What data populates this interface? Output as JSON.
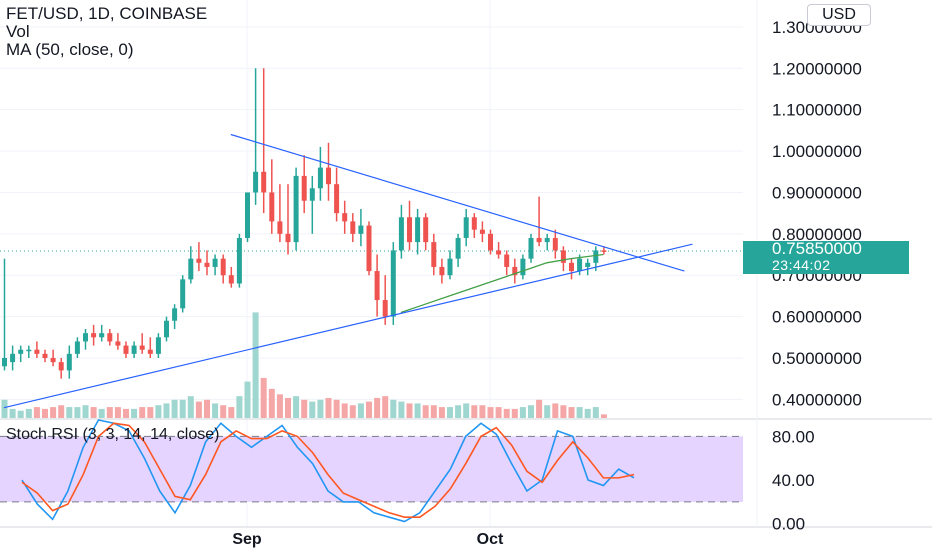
{
  "header": {
    "symbol_line": "FET/USD, 1D, COINBASE",
    "vol_label": "Vol",
    "ma_label": "MA (50, close, 0)"
  },
  "currency_button": "USD",
  "last_price": {
    "value": "0.75850000",
    "countdown": "23:44:02"
  },
  "indicator_title": "Stoch RSI (3, 3, 14, 14, close)",
  "colors": {
    "up": "#26a69a",
    "down": "#ef5350",
    "vol_up": "#9fd6cf",
    "vol_down": "#f4a7a6",
    "trendline": "#2962ff",
    "ma": "#43a047",
    "stoch_k": "#2196f3",
    "stoch_d": "#ff5722",
    "stoch_band": "#e4d4ff",
    "last_price_line": "#26a69a"
  },
  "chart_data": [
    {
      "type": "candlestick",
      "title": "FET/USD, 1D, COINBASE",
      "xlabel": "",
      "ylabel": "",
      "x_tick_labels": [
        "Sep",
        "Oct"
      ],
      "y_tick_labels": [
        "1.30000000",
        "1.20000000",
        "1.10000000",
        "1.00000000",
        "0.90000000",
        "0.80000000",
        "0.70000000",
        "0.60000000",
        "0.50000000",
        "0.40000000"
      ],
      "ylim": [
        0.355,
        1.365
      ],
      "last_price": 0.7585,
      "candles": [
        {
          "d": "Aug 2",
          "o": 0.48,
          "h": 0.74,
          "l": 0.47,
          "c": 0.5
        },
        {
          "d": "Aug 3",
          "o": 0.49,
          "h": 0.53,
          "l": 0.47,
          "c": 0.51
        },
        {
          "d": "Aug 4",
          "o": 0.51,
          "h": 0.53,
          "l": 0.49,
          "c": 0.52
        },
        {
          "d": "Aug 5",
          "o": 0.52,
          "h": 0.53,
          "l": 0.5,
          "c": 0.52
        },
        {
          "d": "Aug 6",
          "o": 0.52,
          "h": 0.54,
          "l": 0.5,
          "c": 0.51
        },
        {
          "d": "Aug 7",
          "o": 0.51,
          "h": 0.52,
          "l": 0.49,
          "c": 0.5
        },
        {
          "d": "Aug 8",
          "o": 0.5,
          "h": 0.52,
          "l": 0.48,
          "c": 0.49
        },
        {
          "d": "Aug 9",
          "o": 0.49,
          "h": 0.5,
          "l": 0.45,
          "c": 0.47
        },
        {
          "d": "Aug 10",
          "o": 0.47,
          "h": 0.53,
          "l": 0.45,
          "c": 0.51
        },
        {
          "d": "Aug 11",
          "o": 0.51,
          "h": 0.55,
          "l": 0.5,
          "c": 0.54
        },
        {
          "d": "Aug 12",
          "o": 0.54,
          "h": 0.57,
          "l": 0.52,
          "c": 0.56
        },
        {
          "d": "Aug 13",
          "o": 0.56,
          "h": 0.58,
          "l": 0.53,
          "c": 0.55
        },
        {
          "d": "Aug 14",
          "o": 0.55,
          "h": 0.58,
          "l": 0.54,
          "c": 0.56
        },
        {
          "d": "Aug 15",
          "o": 0.56,
          "h": 0.57,
          "l": 0.53,
          "c": 0.54
        },
        {
          "d": "Aug 16",
          "o": 0.54,
          "h": 0.56,
          "l": 0.52,
          "c": 0.53
        },
        {
          "d": "Aug 17",
          "o": 0.53,
          "h": 0.54,
          "l": 0.5,
          "c": 0.51
        },
        {
          "d": "Aug 18",
          "o": 0.51,
          "h": 0.54,
          "l": 0.5,
          "c": 0.53
        },
        {
          "d": "Aug 19",
          "o": 0.53,
          "h": 0.56,
          "l": 0.51,
          "c": 0.52
        },
        {
          "d": "Aug 20",
          "o": 0.52,
          "h": 0.55,
          "l": 0.5,
          "c": 0.51
        },
        {
          "d": "Aug 21",
          "o": 0.51,
          "h": 0.56,
          "l": 0.5,
          "c": 0.55
        },
        {
          "d": "Aug 22",
          "o": 0.55,
          "h": 0.6,
          "l": 0.54,
          "c": 0.59
        },
        {
          "d": "Aug 23",
          "o": 0.59,
          "h": 0.63,
          "l": 0.57,
          "c": 0.62
        },
        {
          "d": "Aug 24",
          "o": 0.62,
          "h": 0.7,
          "l": 0.61,
          "c": 0.69
        },
        {
          "d": "Aug 25",
          "o": 0.69,
          "h": 0.77,
          "l": 0.68,
          "c": 0.74
        },
        {
          "d": "Aug 26",
          "o": 0.74,
          "h": 0.78,
          "l": 0.71,
          "c": 0.73
        },
        {
          "d": "Aug 27",
          "o": 0.73,
          "h": 0.76,
          "l": 0.7,
          "c": 0.72
        },
        {
          "d": "Aug 28",
          "o": 0.72,
          "h": 0.75,
          "l": 0.7,
          "c": 0.74
        },
        {
          "d": "Aug 29",
          "o": 0.74,
          "h": 0.75,
          "l": 0.68,
          "c": 0.7
        },
        {
          "d": "Aug 30",
          "o": 0.7,
          "h": 0.72,
          "l": 0.67,
          "c": 0.68
        },
        {
          "d": "Aug 31",
          "o": 0.68,
          "h": 0.8,
          "l": 0.67,
          "c": 0.79
        },
        {
          "d": "Sep 1",
          "o": 0.79,
          "h": 0.9,
          "l": 0.78,
          "c": 0.9
        },
        {
          "d": "Sep 2",
          "o": 0.9,
          "h": 1.2,
          "l": 0.87,
          "c": 0.95
        },
        {
          "d": "Sep 3",
          "o": 0.95,
          "h": 1.2,
          "l": 0.85,
          "c": 0.9
        },
        {
          "d": "Sep 4",
          "o": 0.9,
          "h": 0.98,
          "l": 0.8,
          "c": 0.83
        },
        {
          "d": "Sep 5",
          "o": 0.83,
          "h": 0.92,
          "l": 0.78,
          "c": 0.8
        },
        {
          "d": "Sep 6",
          "o": 0.8,
          "h": 0.92,
          "l": 0.75,
          "c": 0.78
        },
        {
          "d": "Sep 7",
          "o": 0.78,
          "h": 0.96,
          "l": 0.76,
          "c": 0.94
        },
        {
          "d": "Sep 8",
          "o": 0.94,
          "h": 0.99,
          "l": 0.85,
          "c": 0.88
        },
        {
          "d": "Sep 9",
          "o": 0.88,
          "h": 0.94,
          "l": 0.8,
          "c": 0.91
        },
        {
          "d": "Sep 10",
          "o": 0.91,
          "h": 1.01,
          "l": 0.88,
          "c": 0.96
        },
        {
          "d": "Sep 11",
          "o": 0.96,
          "h": 1.02,
          "l": 0.88,
          "c": 0.92
        },
        {
          "d": "Sep 12",
          "o": 0.92,
          "h": 0.96,
          "l": 0.83,
          "c": 0.85
        },
        {
          "d": "Sep 13",
          "o": 0.85,
          "h": 0.88,
          "l": 0.8,
          "c": 0.83
        },
        {
          "d": "Sep 14",
          "o": 0.83,
          "h": 0.85,
          "l": 0.78,
          "c": 0.8
        },
        {
          "d": "Sep 15",
          "o": 0.8,
          "h": 0.86,
          "l": 0.77,
          "c": 0.82
        },
        {
          "d": "Sep 16",
          "o": 0.82,
          "h": 0.83,
          "l": 0.7,
          "c": 0.71
        },
        {
          "d": "Sep 17",
          "o": 0.71,
          "h": 0.75,
          "l": 0.6,
          "c": 0.64
        },
        {
          "d": "Sep 18",
          "o": 0.64,
          "h": 0.7,
          "l": 0.58,
          "c": 0.6
        },
        {
          "d": "Sep 19",
          "o": 0.6,
          "h": 0.78,
          "l": 0.58,
          "c": 0.76
        },
        {
          "d": "Sep 20",
          "o": 0.76,
          "h": 0.87,
          "l": 0.74,
          "c": 0.84
        },
        {
          "d": "Sep 21",
          "o": 0.84,
          "h": 0.88,
          "l": 0.76,
          "c": 0.78
        },
        {
          "d": "Sep 22",
          "o": 0.78,
          "h": 0.86,
          "l": 0.75,
          "c": 0.84
        },
        {
          "d": "Sep 23",
          "o": 0.84,
          "h": 0.85,
          "l": 0.76,
          "c": 0.78
        },
        {
          "d": "Sep 24",
          "o": 0.78,
          "h": 0.8,
          "l": 0.7,
          "c": 0.72
        },
        {
          "d": "Sep 25",
          "o": 0.72,
          "h": 0.74,
          "l": 0.68,
          "c": 0.7
        },
        {
          "d": "Sep 26",
          "o": 0.7,
          "h": 0.76,
          "l": 0.69,
          "c": 0.74
        },
        {
          "d": "Sep 27",
          "o": 0.74,
          "h": 0.8,
          "l": 0.72,
          "c": 0.79
        },
        {
          "d": "Sep 28",
          "o": 0.79,
          "h": 0.86,
          "l": 0.77,
          "c": 0.84
        },
        {
          "d": "Sep 29",
          "o": 0.84,
          "h": 0.85,
          "l": 0.79,
          "c": 0.81
        },
        {
          "d": "Sep 30",
          "o": 0.81,
          "h": 0.83,
          "l": 0.78,
          "c": 0.8
        },
        {
          "d": "Oct 1",
          "o": 0.8,
          "h": 0.81,
          "l": 0.75,
          "c": 0.76
        },
        {
          "d": "Oct 2",
          "o": 0.76,
          "h": 0.78,
          "l": 0.74,
          "c": 0.75
        },
        {
          "d": "Oct 3",
          "o": 0.75,
          "h": 0.76,
          "l": 0.7,
          "c": 0.72
        },
        {
          "d": "Oct 4",
          "o": 0.72,
          "h": 0.74,
          "l": 0.68,
          "c": 0.7
        },
        {
          "d": "Oct 5",
          "o": 0.7,
          "h": 0.75,
          "l": 0.69,
          "c": 0.74
        },
        {
          "d": "Oct 6",
          "o": 0.74,
          "h": 0.8,
          "l": 0.73,
          "c": 0.79
        },
        {
          "d": "Oct 7",
          "o": 0.79,
          "h": 0.89,
          "l": 0.77,
          "c": 0.78
        },
        {
          "d": "Oct 8",
          "o": 0.78,
          "h": 0.8,
          "l": 0.76,
          "c": 0.79
        },
        {
          "d": "Oct 9",
          "o": 0.79,
          "h": 0.81,
          "l": 0.74,
          "c": 0.76
        },
        {
          "d": "Oct 10",
          "o": 0.76,
          "h": 0.77,
          "l": 0.71,
          "c": 0.73
        },
        {
          "d": "Oct 11",
          "o": 0.73,
          "h": 0.74,
          "l": 0.69,
          "c": 0.71
        },
        {
          "d": "Oct 12",
          "o": 0.71,
          "h": 0.75,
          "l": 0.7,
          "c": 0.74
        },
        {
          "d": "Oct 13",
          "o": 0.72,
          "h": 0.74,
          "l": 0.7,
          "c": 0.73
        },
        {
          "d": "Oct 14",
          "o": 0.73,
          "h": 0.77,
          "l": 0.71,
          "c": 0.76
        },
        {
          "d": "Oct 15",
          "o": 0.76,
          "h": 0.77,
          "l": 0.75,
          "c": 0.7585
        }
      ],
      "volume": [
        0.1,
        0.05,
        0.04,
        0.05,
        0.06,
        0.05,
        0.06,
        0.07,
        0.06,
        0.06,
        0.07,
        0.06,
        0.05,
        0.06,
        0.06,
        0.05,
        0.05,
        0.06,
        0.06,
        0.07,
        0.08,
        0.1,
        0.1,
        0.12,
        0.09,
        0.1,
        0.08,
        0.07,
        0.06,
        0.12,
        0.2,
        0.58,
        0.22,
        0.16,
        0.13,
        0.11,
        0.12,
        0.1,
        0.09,
        0.1,
        0.11,
        0.1,
        0.08,
        0.07,
        0.08,
        0.09,
        0.11,
        0.12,
        0.1,
        0.09,
        0.08,
        0.08,
        0.07,
        0.07,
        0.06,
        0.06,
        0.07,
        0.08,
        0.07,
        0.07,
        0.06,
        0.06,
        0.05,
        0.05,
        0.06,
        0.07,
        0.1,
        0.07,
        0.08,
        0.07,
        0.06,
        0.06,
        0.05,
        0.06,
        0.02
      ],
      "ma50": [
        {
          "d": "Sep 20",
          "v": 0.61
        },
        {
          "d": "Sep 23",
          "v": 0.63
        },
        {
          "d": "Sep 26",
          "v": 0.65
        },
        {
          "d": "Sep 29",
          "v": 0.67
        },
        {
          "d": "Oct 2",
          "v": 0.69
        },
        {
          "d": "Oct 5",
          "v": 0.71
        },
        {
          "d": "Oct 8",
          "v": 0.73
        },
        {
          "d": "Oct 11",
          "v": 0.74
        },
        {
          "d": "Oct 15",
          "v": 0.75
        }
      ],
      "trendlines": [
        {
          "name": "upper",
          "from": {
            "d": "Aug 30",
            "v": 1.04
          },
          "to": {
            "d": "Oct 25",
            "v": 0.71
          }
        },
        {
          "name": "lower",
          "from": {
            "d": "Aug 2",
            "v": 0.38
          },
          "to": {
            "d": "Oct 26",
            "v": 0.775
          }
        }
      ]
    },
    {
      "type": "line",
      "title": "Stoch RSI (3, 3, 14, 14, close)",
      "y_tick_labels": [
        "80.00",
        "40.00",
        "0.00"
      ],
      "ylim": [
        -3,
        95
      ],
      "band": [
        20,
        80
      ],
      "series": [
        {
          "key": "k",
          "values": [
            40,
            18,
            4,
            30,
            70,
            95,
            92,
            85,
            60,
            30,
            10,
            35,
            75,
            92,
            80,
            70,
            80,
            90,
            70,
            55,
            30,
            20,
            20,
            10,
            6,
            2,
            10,
            30,
            50,
            80,
            92,
            82,
            55,
            30,
            40,
            85,
            80,
            40,
            35,
            50,
            42
          ]
        },
        {
          "key": "d",
          "values": [
            38,
            28,
            12,
            18,
            45,
            80,
            92,
            90,
            75,
            50,
            25,
            22,
            45,
            75,
            85,
            78,
            78,
            85,
            80,
            65,
            45,
            28,
            22,
            16,
            10,
            6,
            6,
            16,
            32,
            55,
            80,
            88,
            72,
            48,
            38,
            58,
            75,
            60,
            42,
            42,
            45
          ]
        }
      ]
    }
  ]
}
